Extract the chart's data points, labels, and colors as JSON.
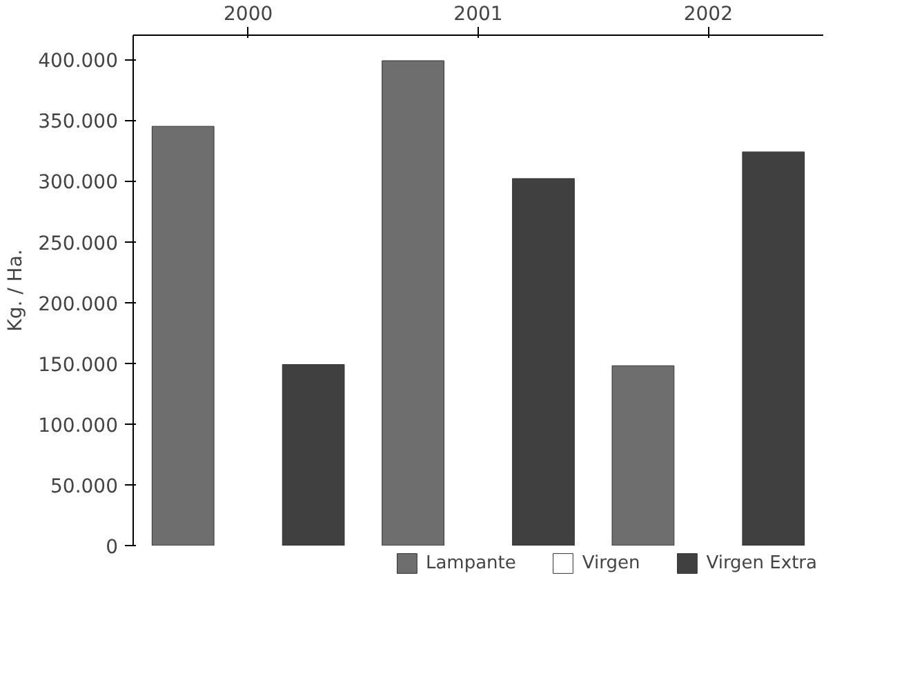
{
  "chart_data": {
    "type": "bar",
    "ylabel": "Kg. / Ha.",
    "categories": [
      "2000",
      "2001",
      "2002"
    ],
    "series": [
      {
        "name": "Lampante",
        "color": "#6e6e6e",
        "values": [
          345000,
          399000,
          148000
        ]
      },
      {
        "name": "Virgen",
        "color": "#ffffff",
        "values": [
          null,
          null,
          null
        ]
      },
      {
        "name": "Virgen Extra",
        "color": "#404040",
        "values": [
          149000,
          302000,
          324000
        ]
      }
    ],
    "ylim": [
      0,
      420000
    ],
    "yticks": [
      {
        "value": 0,
        "label": "0"
      },
      {
        "value": 50000,
        "label": "50.000"
      },
      {
        "value": 100000,
        "label": "100.000"
      },
      {
        "value": 150000,
        "label": "150.000"
      },
      {
        "value": 200000,
        "label": "200.000"
      },
      {
        "value": 250000,
        "label": "250.000"
      },
      {
        "value": 300000,
        "label": "300.000"
      },
      {
        "value": 350000,
        "label": "350.000"
      },
      {
        "value": 400000,
        "label": "400.000"
      }
    ],
    "grid": false,
    "legend": "bottom"
  }
}
